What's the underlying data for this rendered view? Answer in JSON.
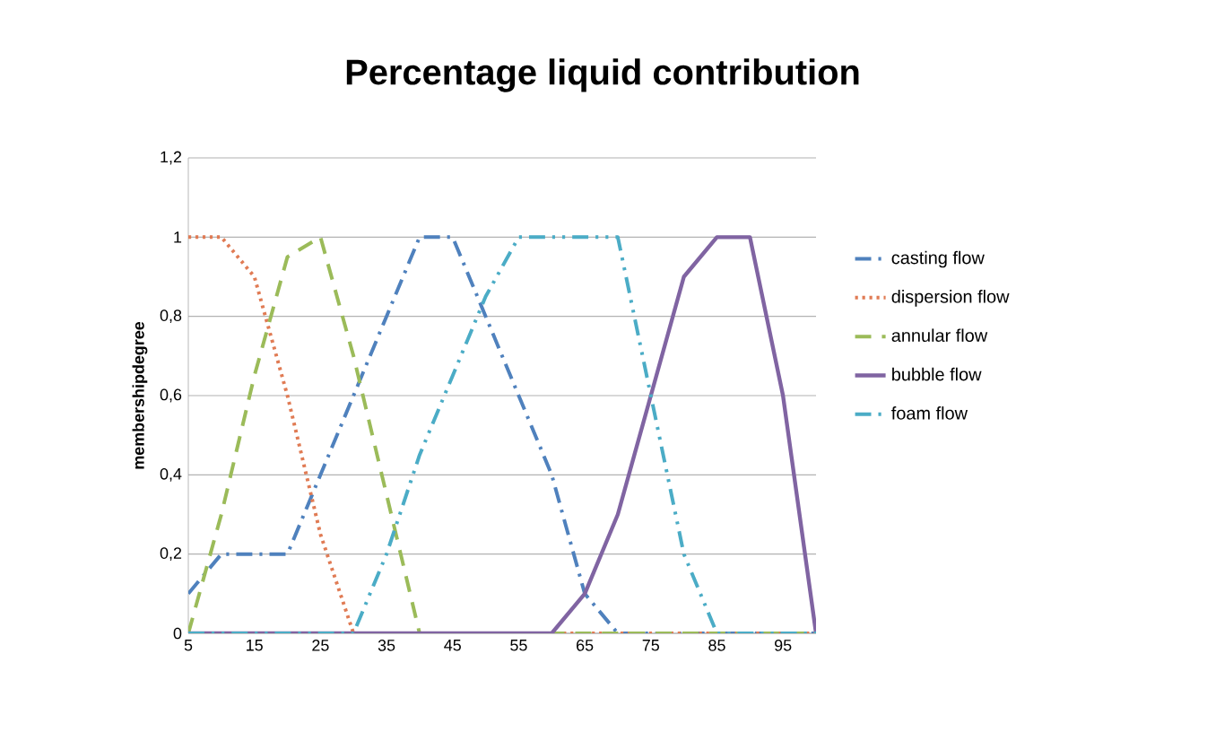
{
  "chart_data": {
    "type": "line",
    "title": "Percentage liquid contribution",
    "ylabel": "membershipdegree",
    "categories": [
      "5",
      null,
      "15",
      null,
      "25",
      null,
      "35",
      null,
      "45",
      null,
      "55",
      null,
      "65",
      null,
      "75",
      null,
      "85",
      null,
      "95",
      null
    ],
    "series": [
      {
        "name": "casting flow",
        "color": "#4f81bd",
        "line_style": "dashdot",
        "values": [
          0.1,
          0.2,
          0.2,
          0.2,
          0.4,
          0.6,
          0.8,
          1,
          1,
          0.8,
          0.6,
          0.4,
          0.1,
          0,
          0,
          0,
          0,
          0,
          0,
          0
        ]
      },
      {
        "name": "dispersion flow",
        "color": "#e07b54",
        "line_style": "dotted",
        "values": [
          1,
          1,
          0.9,
          0.6,
          0.25,
          0,
          0,
          0,
          0,
          0,
          0,
          0,
          0,
          0,
          0,
          0,
          0,
          0,
          0,
          0
        ]
      },
      {
        "name": "annular flow",
        "color": "#9bbb59",
        "line_style": "dashed",
        "values": [
          0,
          0.3,
          0.65,
          0.95,
          1,
          0.7,
          0.35,
          0,
          0,
          0,
          0,
          0,
          0,
          0,
          0,
          0,
          0,
          0,
          0,
          0
        ]
      },
      {
        "name": "bubble flow",
        "color": "#8064a2",
        "line_style": "solid",
        "values": [
          0,
          0,
          0,
          0,
          0,
          0,
          0,
          0,
          0,
          0,
          0,
          0,
          0.1,
          0.3,
          0.6,
          0.9,
          1,
          1,
          0.6,
          0
        ]
      },
      {
        "name": "foam flow",
        "color": "#4bacc6",
        "line_style": "dashdotdot",
        "values": [
          0,
          0,
          0,
          0,
          0,
          0,
          0.2,
          0.45,
          0.65,
          0.85,
          1,
          1,
          1,
          1,
          0.6,
          0.2,
          0,
          0,
          0,
          0
        ]
      }
    ],
    "ylim": [
      0,
      1.2
    ],
    "yticks": [
      0,
      {
        "value": 0.2,
        "label": "0,2"
      },
      {
        "value": 0.4,
        "label": "0,4"
      },
      {
        "value": 0.6,
        "label": "0,6"
      },
      {
        "value": 0.8,
        "label": "0,8"
      },
      1,
      {
        "value": 1.2,
        "label": "1,2"
      }
    ],
    "grid": "y",
    "legend": "right",
    "marker": "none"
  }
}
